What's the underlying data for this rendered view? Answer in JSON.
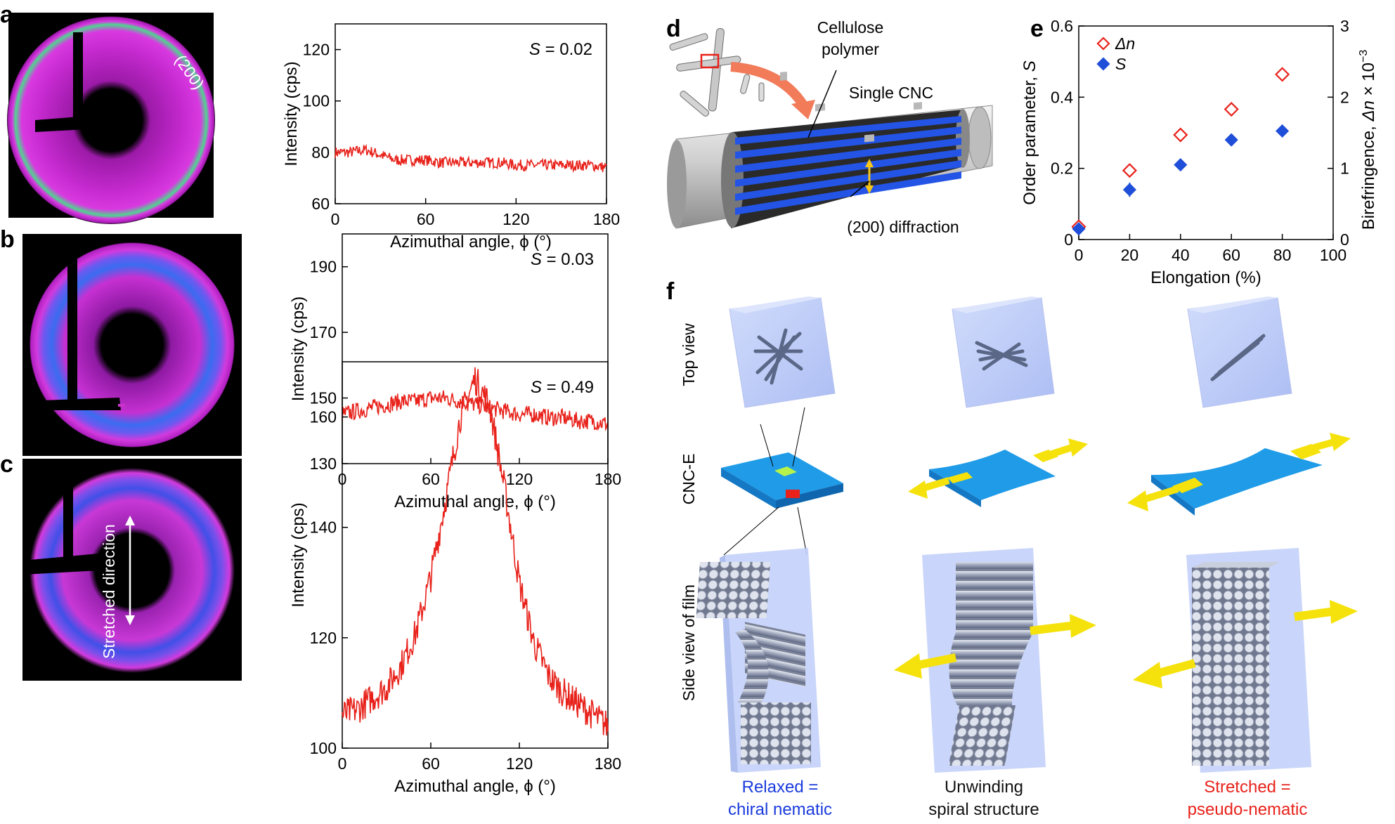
{
  "panels": {
    "a": {
      "label": "a",
      "ring_label": "(200)",
      "chart_data": {
        "type": "line",
        "title": "",
        "xlabel": "Azimuthal angle, ϕ (°)",
        "ylabel": "Intensity (cps)",
        "x_range": [
          0,
          180
        ],
        "y_range": [
          60,
          130
        ],
        "x_ticks": [
          0,
          60,
          120,
          180
        ],
        "y_ticks": [
          60,
          80,
          100,
          120
        ],
        "annotation_symbol": "S",
        "annotation_value": " = 0.02",
        "series": [
          {
            "name": "intensity",
            "color": "#e8221b",
            "x": [
              0,
              10,
              20,
              30,
              40,
              50,
              60,
              70,
              80,
              90,
              100,
              110,
              120,
              130,
              140,
              150,
              160,
              170,
              180
            ],
            "y": [
              80,
              80,
              81,
              79,
              77,
              77,
              77,
              76,
              76,
              76,
              76,
              76,
              75,
              75,
              75,
              75,
              75,
              75,
              74
            ]
          }
        ]
      }
    },
    "b": {
      "label": "b",
      "chart_data": {
        "type": "line",
        "title": "",
        "xlabel": "Azimuthal angle, ϕ (°)",
        "ylabel": "Intensity (cps)",
        "x_range": [
          0,
          180
        ],
        "y_range": [
          130,
          200
        ],
        "x_ticks": [
          0,
          60,
          120,
          180
        ],
        "y_ticks": [
          130,
          150,
          170,
          190
        ],
        "annotation_symbol": "S",
        "annotation_value": " = 0.03",
        "series": [
          {
            "name": "intensity",
            "color": "#e8221b",
            "x": [
              0,
              10,
              20,
              30,
              40,
              50,
              60,
              70,
              80,
              90,
              100,
              110,
              120,
              130,
              140,
              150,
              160,
              170,
              180
            ],
            "y": [
              145,
              146,
              147,
              148,
              149,
              149,
              150,
              150,
              149,
              148,
              147,
              146,
              145,
              145,
              144,
              144,
              143,
              143,
              142
            ]
          }
        ]
      }
    },
    "c": {
      "label": "c",
      "stretch_label": "Stretched direction",
      "chart_data": {
        "type": "line",
        "title": "",
        "xlabel": "Azimuthal angle, ϕ (°)",
        "ylabel": "Intensity (cps)",
        "x_range": [
          0,
          180
        ],
        "y_range": [
          100,
          170
        ],
        "x_ticks": [
          0,
          60,
          120,
          180
        ],
        "y_ticks": [
          100,
          120,
          140,
          160
        ],
        "annotation_symbol": "S",
        "annotation_value": " = 0.49",
        "series": [
          {
            "name": "intensity",
            "color": "#e8221b",
            "x": [
              0,
              10,
              20,
              30,
              40,
              50,
              60,
              70,
              80,
              90,
              100,
              110,
              120,
              130,
              140,
              150,
              160,
              170,
              180
            ],
            "y": [
              106,
              107,
              109,
              111,
              115,
              121,
              131,
              145,
              160,
              167,
              162,
              147,
              130,
              119,
              113,
              110,
              108,
              106,
              104
            ]
          }
        ]
      }
    },
    "d": {
      "label": "d",
      "cellulose_label_line1": "Cellulose",
      "cellulose_label_line2": "polymer",
      "single_cnc_label": "Single CNC",
      "diffraction_label": "(200) diffraction"
    },
    "e": {
      "label": "e",
      "chart_data": {
        "type": "scatter",
        "title": "",
        "xlabel": "Elongation (%)",
        "ylabel_left_prefix": "Order parameter, ",
        "ylabel_left_symbol": "S",
        "ylabel_right_prefix": "Birefringence, ",
        "ylabel_right_symbol": "Δn",
        "ylabel_right_factor": " × 10",
        "ylabel_right_exp": "−3",
        "x_range": [
          0,
          100
        ],
        "y_range": [
          0,
          0.6
        ],
        "y2_range": [
          0,
          3
        ],
        "x_ticks": [
          0,
          20,
          40,
          60,
          80,
          100
        ],
        "y_ticks": [
          0,
          0.2,
          0.4,
          0.6
        ],
        "y_tick_labels": [
          "0",
          "0.2",
          "0.4",
          "0.6"
        ],
        "y2_ticks": [
          0,
          1,
          2,
          3
        ],
        "legend_position": "top-left",
        "series": [
          {
            "name": "Δn",
            "axis": "right",
            "marker": "open-diamond",
            "color": "#e8221b",
            "x": [
              0,
              20,
              40,
              60,
              80
            ],
            "y": [
              0.18,
              0.97,
              1.47,
              1.83,
              2.32
            ]
          },
          {
            "name": "S",
            "axis": "left",
            "marker": "filled-diamond",
            "color": "#1f4ed8",
            "x": [
              0,
              20,
              40,
              60,
              80
            ],
            "y": [
              0.03,
              0.14,
              0.21,
              0.28,
              0.305
            ]
          }
        ]
      }
    },
    "f": {
      "label": "f",
      "row_labels": [
        "Top view",
        "CNC-E",
        "Side view of film"
      ],
      "captions": [
        {
          "line1": "Relaxed =",
          "line2": "chiral nematic",
          "color": "#1a3bdc"
        },
        {
          "line1": "Unwinding",
          "line2": "spiral structure",
          "color": "#111111"
        },
        {
          "line1": "Stretched =",
          "line2": "pseudo-nematic",
          "color": "#e8221b"
        }
      ]
    }
  }
}
